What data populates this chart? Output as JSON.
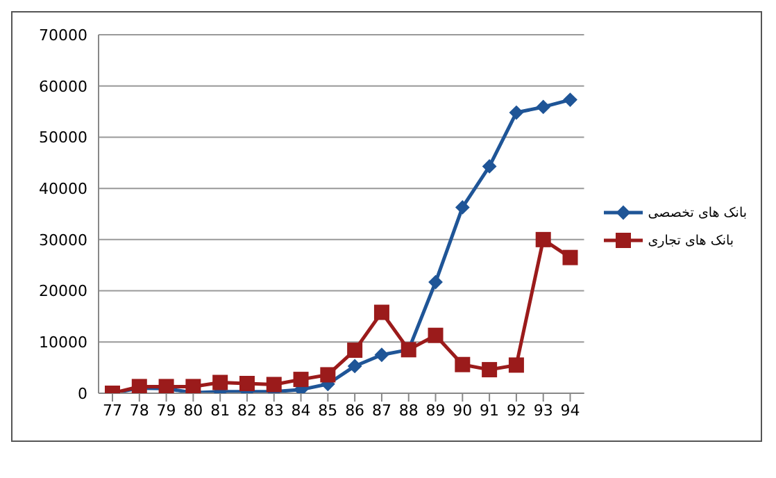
{
  "chart_data": {
    "type": "line",
    "categories": [
      "77",
      "78",
      "79",
      "80",
      "81",
      "82",
      "83",
      "84",
      "85",
      "86",
      "87",
      "88",
      "89",
      "90",
      "91",
      "92",
      "93",
      "94"
    ],
    "series": [
      {
        "name": "بانک های تخصصی",
        "color": "#1f5597",
        "marker": "diamond",
        "values": [
          0,
          1000,
          900,
          100,
          300,
          300,
          300,
          700,
          1800,
          5300,
          7500,
          8500,
          21700,
          36300,
          44300,
          54800,
          55900,
          57300
        ]
      },
      {
        "name": "بانک های تجاری",
        "color": "#9b1b1b",
        "marker": "square",
        "values": [
          0,
          1300,
          1300,
          1300,
          2100,
          1900,
          1700,
          2700,
          3600,
          8400,
          15800,
          8500,
          11300,
          5600,
          4600,
          5500,
          30000,
          26500
        ]
      }
    ],
    "ylim": [
      0,
      70000
    ],
    "yticks": [
      0,
      10000,
      20000,
      30000,
      40000,
      50000,
      60000,
      70000
    ],
    "grid": "y",
    "legend": "right",
    "line_style": "solid"
  }
}
